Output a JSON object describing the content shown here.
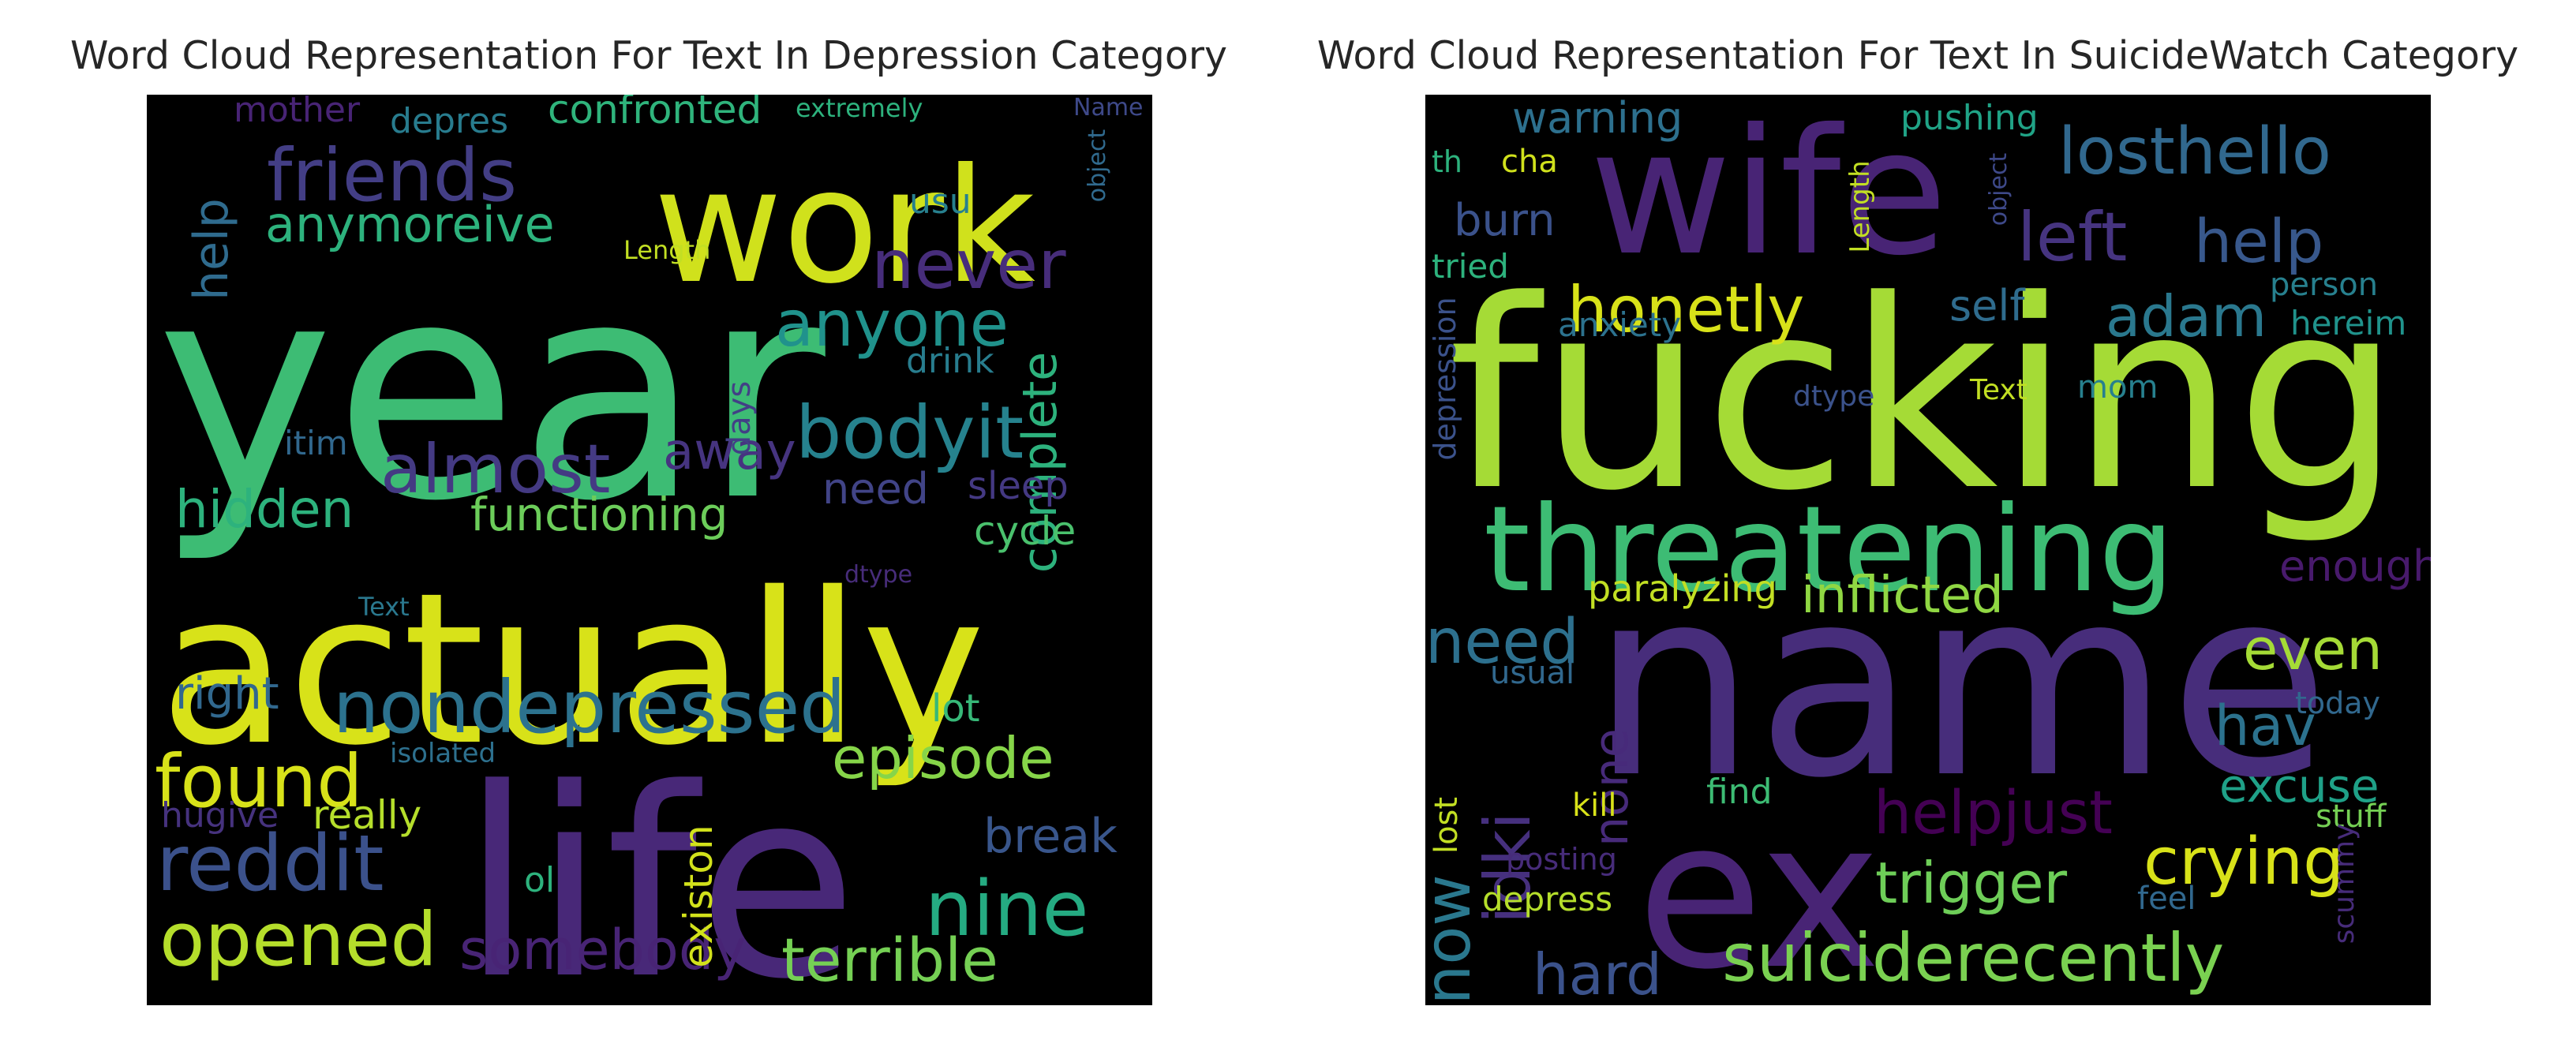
{
  "chart_data": [
    {
      "type": "wordcloud",
      "title": "Word Cloud Representation For Text In Depression Category",
      "colormap": "viridis",
      "background": "#000000",
      "words": [
        {
          "text": "year",
          "weight": 1.0,
          "color": "#3dbc74",
          "vertical": false
        },
        {
          "text": "actually",
          "weight": 0.98,
          "color": "#d8e219",
          "vertical": false
        },
        {
          "text": "life",
          "weight": 0.95,
          "color": "#482878",
          "vertical": false
        },
        {
          "text": "work",
          "weight": 0.68,
          "color": "#d0e11c",
          "vertical": false
        },
        {
          "text": "friends",
          "weight": 0.36,
          "color": "#433e85",
          "vertical": false
        },
        {
          "text": "nondepressed",
          "weight": 0.35,
          "color": "#2c728e",
          "vertical": false
        },
        {
          "text": "almost",
          "weight": 0.35,
          "color": "#443a83",
          "vertical": false
        },
        {
          "text": "reddit",
          "weight": 0.35,
          "color": "#3b518b",
          "vertical": false
        },
        {
          "text": "nine",
          "weight": 0.35,
          "color": "#25ab82",
          "vertical": false
        },
        {
          "text": "found",
          "weight": 0.34,
          "color": "#d8e219",
          "vertical": false
        },
        {
          "text": "opened",
          "weight": 0.33,
          "color": "#b5de2b",
          "vertical": false
        },
        {
          "text": "bodyit",
          "weight": 0.32,
          "color": "#26828e",
          "vertical": false
        },
        {
          "text": "anyone",
          "weight": 0.3,
          "color": "#20928c",
          "vertical": false
        },
        {
          "text": "never",
          "weight": 0.3,
          "color": "#472d7b",
          "vertical": false
        },
        {
          "text": "episode",
          "weight": 0.28,
          "color": "#86d549",
          "vertical": false
        },
        {
          "text": "terrible",
          "weight": 0.28,
          "color": "#75d054",
          "vertical": false
        },
        {
          "text": "somebody",
          "weight": 0.26,
          "color": "#482475",
          "vertical": false
        },
        {
          "text": "anymoreive",
          "weight": 0.25,
          "color": "#2db27d",
          "vertical": false
        },
        {
          "text": "complete",
          "weight": 0.24,
          "color": "#2db27d",
          "vertical": true
        },
        {
          "text": "hidden",
          "weight": 0.23,
          "color": "#2db27d",
          "vertical": false
        },
        {
          "text": "functioning",
          "weight": 0.23,
          "color": "#6ccd5a",
          "vertical": false
        },
        {
          "text": "away",
          "weight": 0.23,
          "color": "#463480",
          "vertical": false
        },
        {
          "text": "break",
          "weight": 0.22,
          "color": "#39568c",
          "vertical": false
        },
        {
          "text": "help",
          "weight": 0.22,
          "color": "#2f6b8e",
          "vertical": true
        },
        {
          "text": "right",
          "weight": 0.2,
          "color": "#31688e",
          "vertical": false
        },
        {
          "text": "confronted",
          "weight": 0.18,
          "color": "#2fb47c",
          "vertical": false
        },
        {
          "text": "need",
          "weight": 0.18,
          "color": "#414487",
          "vertical": false
        },
        {
          "text": "really",
          "weight": 0.18,
          "color": "#b5de2b",
          "vertical": false
        },
        {
          "text": "existon",
          "weight": 0.18,
          "color": "#d2e21b",
          "vertical": true
        },
        {
          "text": "sleep",
          "weight": 0.17,
          "color": "#443983",
          "vertical": false
        },
        {
          "text": "cycle",
          "weight": 0.17,
          "color": "#4ac16d",
          "vertical": false
        },
        {
          "text": "lot",
          "weight": 0.17,
          "color": "#37b878",
          "vertical": false
        },
        {
          "text": "mother",
          "weight": 0.16,
          "color": "#482475",
          "vertical": false
        },
        {
          "text": "depres",
          "weight": 0.16,
          "color": "#287c8e",
          "vertical": false
        },
        {
          "text": "drink",
          "weight": 0.16,
          "color": "#287d8e",
          "vertical": false
        },
        {
          "text": "usu",
          "weight": 0.16,
          "color": "#27808e",
          "vertical": false
        },
        {
          "text": "itim",
          "weight": 0.16,
          "color": "#31688e",
          "vertical": false
        },
        {
          "text": "hugive",
          "weight": 0.16,
          "color": "#46327e",
          "vertical": false
        },
        {
          "text": "ol",
          "weight": 0.16,
          "color": "#2db27d",
          "vertical": false
        },
        {
          "text": "days",
          "weight": 0.15,
          "color": "#424086",
          "vertical": true
        },
        {
          "text": "extremely",
          "weight": 0.12,
          "color": "#2db27d",
          "vertical": false
        },
        {
          "text": "Length",
          "weight": 0.12,
          "color": "#c2df23",
          "vertical": false
        },
        {
          "text": "Name",
          "weight": 0.11,
          "color": "#3e4989",
          "vertical": false
        },
        {
          "text": "object",
          "weight": 0.11,
          "color": "#306a8e",
          "vertical": true
        },
        {
          "text": "dtype",
          "weight": 0.12,
          "color": "#472c7a",
          "vertical": false
        },
        {
          "text": "Text",
          "weight": 0.12,
          "color": "#2a788e",
          "vertical": false
        },
        {
          "text": "isolated",
          "weight": 0.12,
          "color": "#2d708e",
          "vertical": false
        }
      ]
    },
    {
      "type": "wordcloud",
      "title": "Word Cloud Representation For Text In SuicideWatch Category",
      "colormap": "viridis",
      "background": "#000000",
      "words": [
        {
          "text": "fucking",
          "weight": 1.0,
          "color": "#a5db36",
          "vertical": false
        },
        {
          "text": "name",
          "weight": 0.98,
          "color": "#472d7b",
          "vertical": false
        },
        {
          "text": "wife",
          "weight": 0.8,
          "color": "#482475",
          "vertical": false
        },
        {
          "text": "ex",
          "weight": 0.78,
          "color": "#482475",
          "vertical": false
        },
        {
          "text": "threatening",
          "weight": 0.55,
          "color": "#3dbc74",
          "vertical": false
        },
        {
          "text": "suiciderecently",
          "weight": 0.34,
          "color": "#7ad151",
          "vertical": false
        },
        {
          "text": "losthello",
          "weight": 0.33,
          "color": "#31688e",
          "vertical": false
        },
        {
          "text": "honetly",
          "weight": 0.32,
          "color": "#d8e219",
          "vertical": false
        },
        {
          "text": "helpjust",
          "weight": 0.32,
          "color": "#440154",
          "vertical": false
        },
        {
          "text": "crying",
          "weight": 0.32,
          "color": "#d8e219",
          "vertical": false
        },
        {
          "text": "left",
          "weight": 0.31,
          "color": "#463480",
          "vertical": false
        },
        {
          "text": "help",
          "weight": 0.3,
          "color": "#38588c",
          "vertical": false
        },
        {
          "text": "adam",
          "weight": 0.3,
          "color": "#2a788e",
          "vertical": false
        },
        {
          "text": "idki",
          "weight": 0.3,
          "color": "#46307e",
          "vertical": true
        },
        {
          "text": "know",
          "weight": 0.3,
          "color": "#2a788e",
          "vertical": true
        },
        {
          "text": "hard",
          "weight": 0.3,
          "color": "#3b528b",
          "vertical": false
        },
        {
          "text": "need",
          "weight": 0.28,
          "color": "#2d708e",
          "vertical": false
        },
        {
          "text": "trigger",
          "weight": 0.28,
          "color": "#6ece58",
          "vertical": false
        },
        {
          "text": "inflicted",
          "weight": 0.27,
          "color": "#90d743",
          "vertical": false
        },
        {
          "text": "hav",
          "weight": 0.27,
          "color": "#2c728e",
          "vertical": false
        },
        {
          "text": "even",
          "weight": 0.27,
          "color": "#a5db36",
          "vertical": false
        },
        {
          "text": "excuse",
          "weight": 0.25,
          "color": "#1fa188",
          "vertical": false
        },
        {
          "text": "none",
          "weight": 0.24,
          "color": "#472a7a",
          "vertical": true
        },
        {
          "text": "warning",
          "weight": 0.22,
          "color": "#2d708e",
          "vertical": false
        },
        {
          "text": "burn",
          "weight": 0.21,
          "color": "#3b528b",
          "vertical": false
        },
        {
          "text": "enough",
          "weight": 0.21,
          "color": "#481a6c",
          "vertical": false
        },
        {
          "text": "self",
          "weight": 0.21,
          "color": "#2f6c8e",
          "vertical": false
        },
        {
          "text": "paralyzing",
          "weight": 0.18,
          "color": "#c2df23",
          "vertical": false
        },
        {
          "text": "pushing",
          "weight": 0.16,
          "color": "#20a386",
          "vertical": false
        },
        {
          "text": "cha",
          "weight": 0.16,
          "color": "#d0e11c",
          "vertical": false
        },
        {
          "text": "th",
          "weight": 0.16,
          "color": "#2db27d",
          "vertical": false
        },
        {
          "text": "tried",
          "weight": 0.16,
          "color": "#2db27d",
          "vertical": false
        },
        {
          "text": "anxiety",
          "weight": 0.16,
          "color": "#2c728e",
          "vertical": false
        },
        {
          "text": "person",
          "weight": 0.16,
          "color": "#27808e",
          "vertical": false
        },
        {
          "text": "hereim",
          "weight": 0.16,
          "color": "#20938c",
          "vertical": false
        },
        {
          "text": "mom",
          "weight": 0.16,
          "color": "#27808e",
          "vertical": false
        },
        {
          "text": "depression",
          "weight": 0.16,
          "color": "#3b528b",
          "vertical": true
        },
        {
          "text": "usual",
          "weight": 0.15,
          "color": "#31688e",
          "vertical": false
        },
        {
          "text": "lost",
          "weight": 0.15,
          "color": "#c2df23",
          "vertical": true
        },
        {
          "text": "today",
          "weight": 0.15,
          "color": "#31688e",
          "vertical": false
        },
        {
          "text": "kill",
          "weight": 0.15,
          "color": "#d8e219",
          "vertical": false
        },
        {
          "text": "find",
          "weight": 0.15,
          "color": "#3dbc74",
          "vertical": false
        },
        {
          "text": "stuff",
          "weight": 0.15,
          "color": "#75d054",
          "vertical": false
        },
        {
          "text": "posting",
          "weight": 0.15,
          "color": "#472c7a",
          "vertical": false
        },
        {
          "text": "depress",
          "weight": 0.15,
          "color": "#b5de2b",
          "vertical": false
        },
        {
          "text": "feel",
          "weight": 0.15,
          "color": "#31688e",
          "vertical": false
        },
        {
          "text": "scummy",
          "weight": 0.14,
          "color": "#472c7a",
          "vertical": true
        },
        {
          "text": "Length",
          "weight": 0.12,
          "color": "#c2df23",
          "vertical": true
        },
        {
          "text": "object",
          "weight": 0.12,
          "color": "#3e4989",
          "vertical": true
        },
        {
          "text": "dtype",
          "weight": 0.12,
          "color": "#3b528b",
          "vertical": false
        },
        {
          "text": "Text",
          "weight": 0.12,
          "color": "#c2df23",
          "vertical": false
        }
      ]
    }
  ]
}
